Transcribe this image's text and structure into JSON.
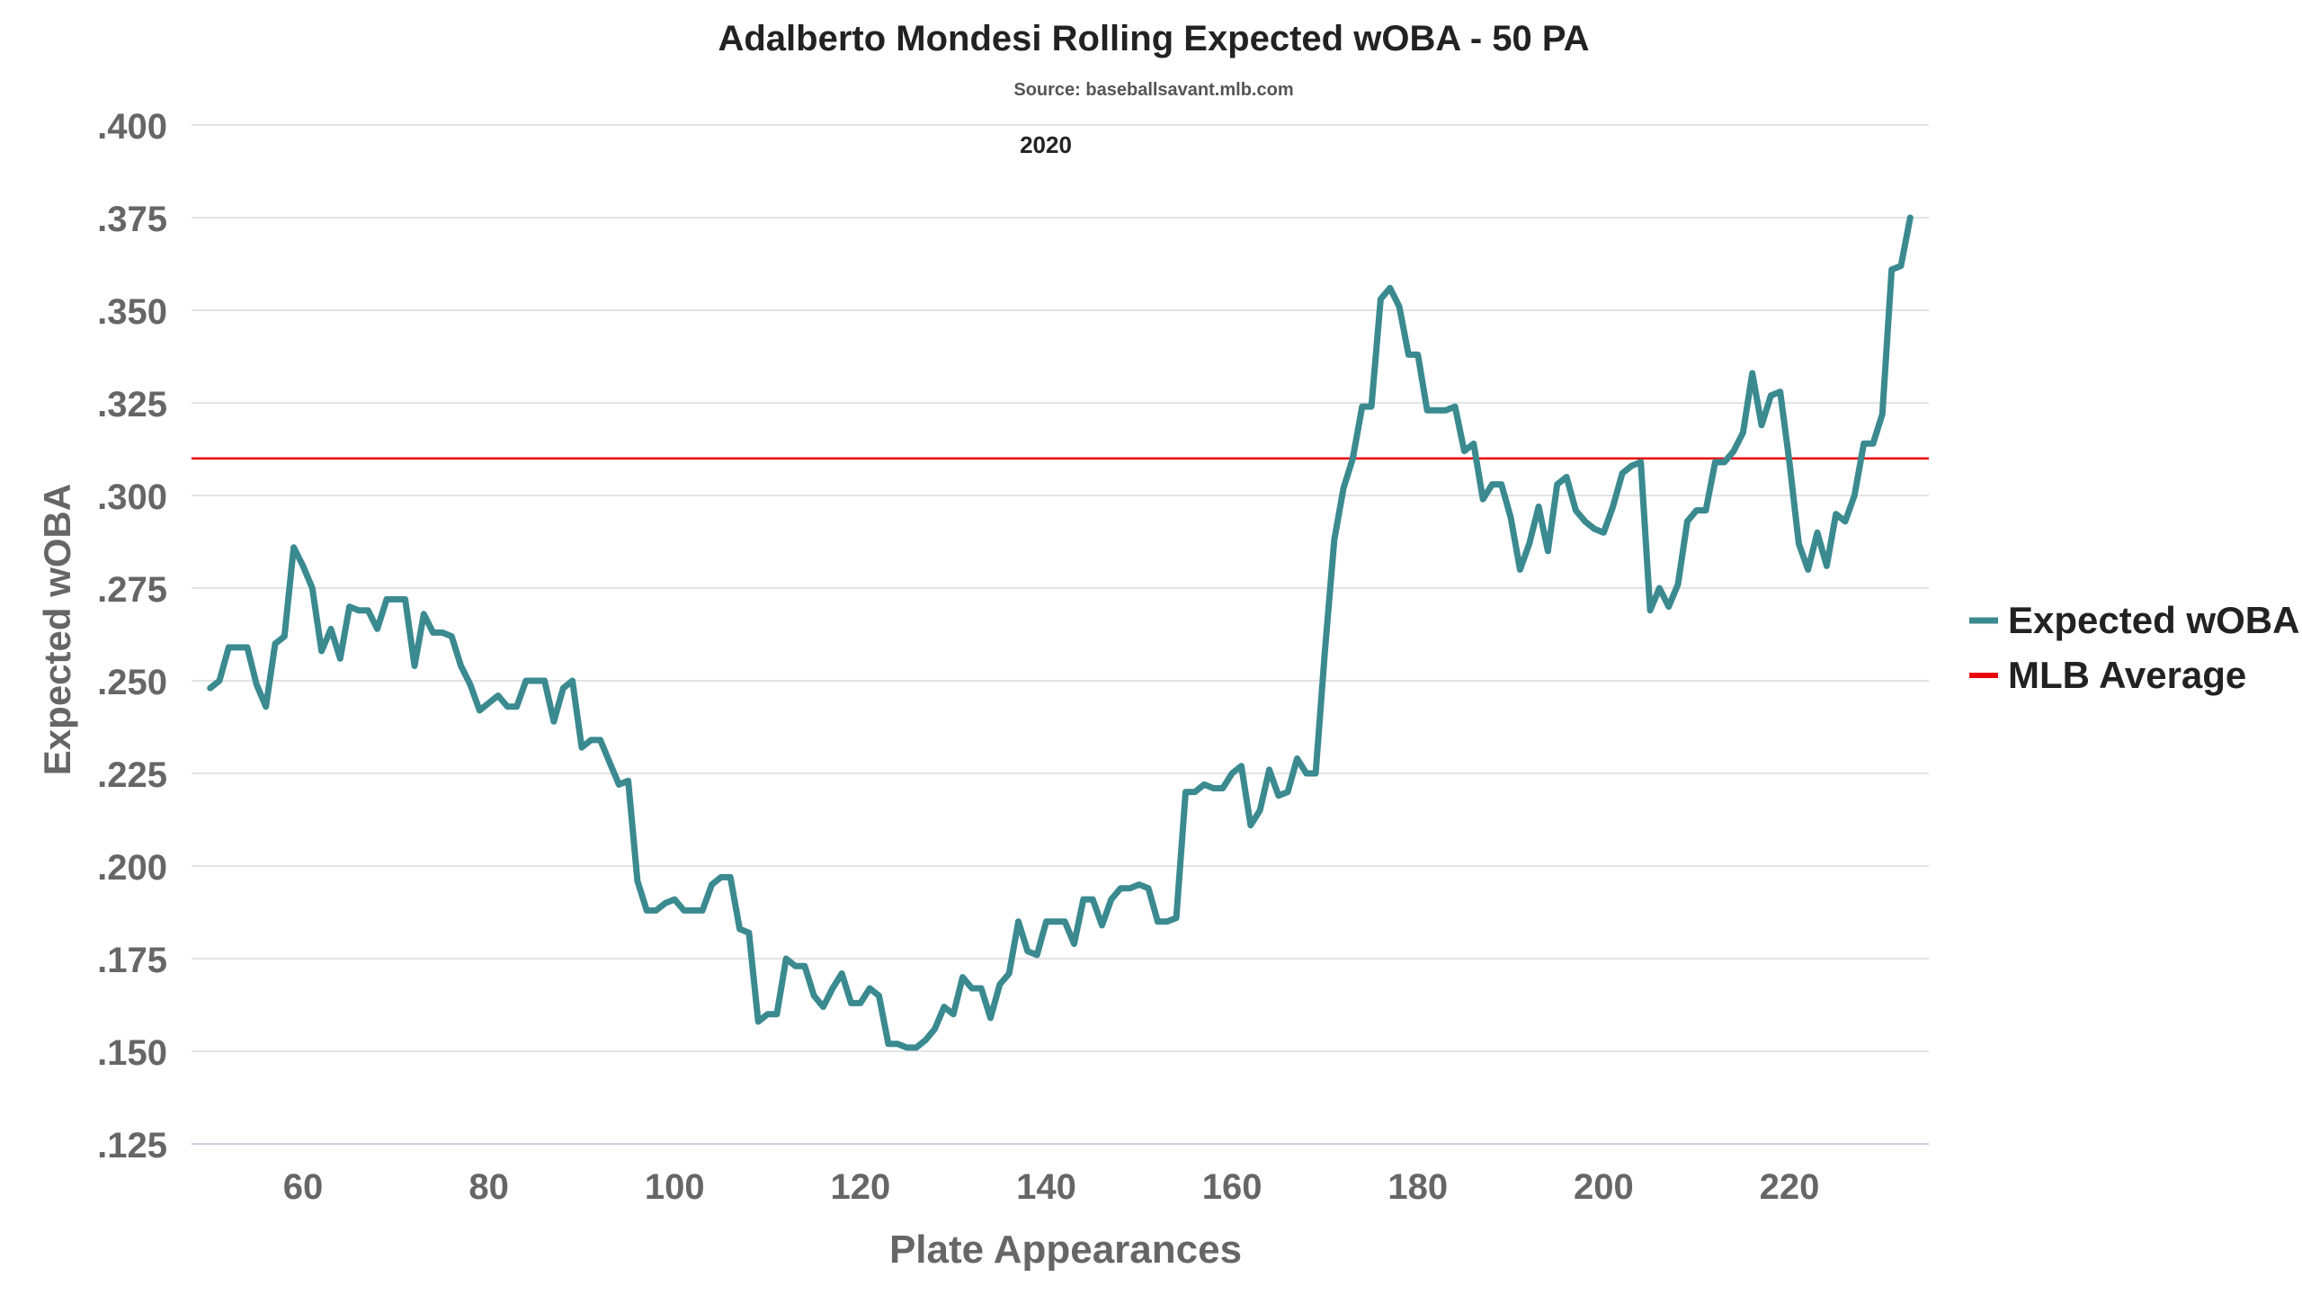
{
  "chart_data": {
    "type": "line",
    "title": "Adalberto Mondesi Rolling Expected wOBA - 50 PA",
    "subtitle": "Source: baseballsavant.mlb.com",
    "annotation": "2020",
    "xlabel": "Plate Appearances",
    "ylabel": "Expected wOBA",
    "xlim": [
      48,
      235
    ],
    "ylim": [
      0.125,
      0.4
    ],
    "x_ticks": [
      60,
      80,
      100,
      120,
      140,
      160,
      180,
      200,
      220
    ],
    "y_ticks": [
      0.125,
      0.15,
      0.175,
      0.2,
      0.225,
      0.25,
      0.275,
      0.3,
      0.325,
      0.35,
      0.375,
      0.4
    ],
    "y_tick_labels": [
      ".125",
      ".150",
      ".175",
      ".200",
      ".225",
      ".250",
      ".275",
      ".300",
      ".325",
      ".350",
      ".375",
      ".400"
    ],
    "x_tick_labels": [
      "60",
      "80",
      "100",
      "120",
      "140",
      "160",
      "180",
      "200",
      "220"
    ],
    "grid": true,
    "legend_position": "right",
    "colors": {
      "series": "#3a8a90",
      "average": "#e8070b",
      "grid": "#e3e3e3"
    },
    "series": [
      {
        "name": "Expected wOBA",
        "x_start": 50,
        "values": [
          0.248,
          0.25,
          0.259,
          0.259,
          0.259,
          0.249,
          0.243,
          0.26,
          0.262,
          0.286,
          0.281,
          0.275,
          0.258,
          0.264,
          0.256,
          0.27,
          0.269,
          0.269,
          0.264,
          0.272,
          0.272,
          0.272,
          0.254,
          0.268,
          0.263,
          0.263,
          0.262,
          0.254,
          0.249,
          0.242,
          0.244,
          0.246,
          0.243,
          0.243,
          0.25,
          0.25,
          0.25,
          0.239,
          0.248,
          0.25,
          0.232,
          0.234,
          0.234,
          0.228,
          0.222,
          0.223,
          0.196,
          0.188,
          0.188,
          0.19,
          0.191,
          0.188,
          0.188,
          0.188,
          0.195,
          0.197,
          0.197,
          0.183,
          0.182,
          0.158,
          0.16,
          0.16,
          0.175,
          0.173,
          0.173,
          0.165,
          0.162,
          0.167,
          0.171,
          0.163,
          0.163,
          0.167,
          0.165,
          0.152,
          0.152,
          0.151,
          0.151,
          0.153,
          0.156,
          0.162,
          0.16,
          0.17,
          0.167,
          0.167,
          0.159,
          0.168,
          0.171,
          0.185,
          0.177,
          0.176,
          0.185,
          0.185,
          0.185,
          0.179,
          0.191,
          0.191,
          0.184,
          0.191,
          0.194,
          0.194,
          0.195,
          0.194,
          0.185,
          0.185,
          0.186,
          0.22,
          0.22,
          0.222,
          0.221,
          0.221,
          0.225,
          0.227,
          0.211,
          0.215,
          0.226,
          0.219,
          0.22,
          0.229,
          0.225,
          0.225,
          0.258,
          0.288,
          0.302,
          0.31,
          0.324,
          0.324,
          0.353,
          0.356,
          0.351,
          0.338,
          0.338,
          0.323,
          0.323,
          0.323,
          0.324,
          0.312,
          0.314,
          0.299,
          0.303,
          0.303,
          0.294,
          0.28,
          0.287,
          0.297,
          0.285,
          0.303,
          0.305,
          0.296,
          0.293,
          0.291,
          0.29,
          0.297,
          0.306,
          0.308,
          0.309,
          0.269,
          0.275,
          0.27,
          0.276,
          0.293,
          0.296,
          0.296,
          0.309,
          0.309,
          0.312,
          0.317,
          0.333,
          0.319,
          0.327,
          0.328,
          0.309,
          0.287,
          0.28,
          0.29,
          0.281,
          0.295,
          0.293,
          0.3,
          0.314,
          0.314,
          0.322,
          0.361,
          0.362,
          0.375
        ]
      },
      {
        "name": "MLB Average",
        "value": 0.31
      }
    ]
  }
}
